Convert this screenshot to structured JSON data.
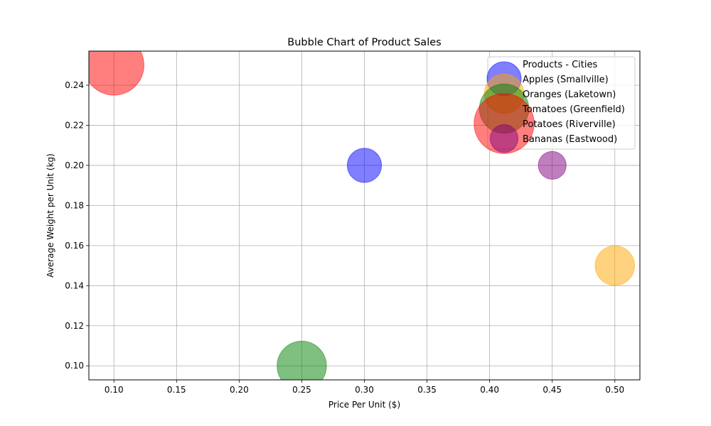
{
  "chart_data": {
    "type": "scatter",
    "title": "Bubble Chart of Product Sales",
    "xlabel": "Price Per Unit ($)",
    "ylabel": "Average Weight per Unit (kg)",
    "xlim": [
      0.08,
      0.52
    ],
    "ylim": [
      0.093,
      0.257
    ],
    "xticks": [
      "0.10",
      "0.15",
      "0.20",
      "0.25",
      "0.30",
      "0.35",
      "0.40",
      "0.45",
      "0.50"
    ],
    "yticks": [
      "0.10",
      "0.12",
      "0.14",
      "0.16",
      "0.18",
      "0.20",
      "0.22",
      "0.24"
    ],
    "grid": true,
    "legend": {
      "title": "Products - Cities",
      "placement": "top-right"
    },
    "series": [
      {
        "name": "Apples (Smallville)",
        "x": 0.3,
        "y": 0.2,
        "size": 1200,
        "color": "#0000ff"
      },
      {
        "name": "Oranges (Laketown)",
        "x": 0.5,
        "y": 0.15,
        "size": 1600,
        "color": "#ffa500"
      },
      {
        "name": "Tomatoes (Greenfield)",
        "x": 0.25,
        "y": 0.1,
        "size": 2500,
        "color": "#008000"
      },
      {
        "name": "Potatoes (Riverville)",
        "x": 0.1,
        "y": 0.25,
        "size": 3700,
        "color": "#ff0000"
      },
      {
        "name": "Bananas (Eastwood)",
        "x": 0.45,
        "y": 0.2,
        "size": 800,
        "color": "#800080"
      }
    ]
  }
}
